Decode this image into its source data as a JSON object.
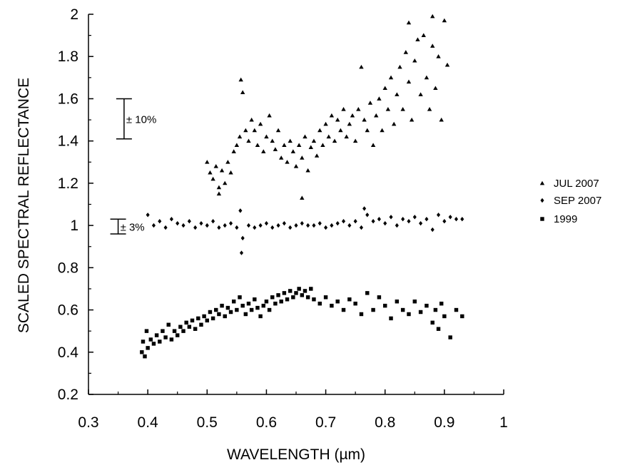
{
  "chart_data": {
    "type": "scatter",
    "title": "",
    "xlabel": "WAVELENGTH (µm)",
    "ylabel": "SCALED SPECTRAL REFLECTANCE",
    "xlim": [
      0.3,
      1.0
    ],
    "ylim": [
      0.2,
      2.0
    ],
    "x_ticks": [
      0.3,
      0.4,
      0.5,
      0.6,
      0.7,
      0.8,
      0.9,
      1.0
    ],
    "x_tick_labels": [
      "0.3",
      "0.4",
      "0.5",
      "0.6",
      "0.7",
      "0.8",
      "0.9",
      "1"
    ],
    "y_ticks": [
      0.2,
      0.4,
      0.6,
      0.8,
      1.0,
      1.2,
      1.4,
      1.6,
      1.8,
      2.0
    ],
    "y_tick_labels": [
      "0.2",
      "0.4",
      "0.6",
      "0.8",
      "1",
      "1.2",
      "1.4",
      "1.6",
      "1.8",
      "2"
    ],
    "grid": false,
    "legend_position": "right",
    "error_bars": [
      {
        "label": "± 10%",
        "x": 0.36,
        "y_low": 1.41,
        "y_high": 1.6
      },
      {
        "label": "± 3%",
        "x": 0.35,
        "y_low": 0.96,
        "y_high": 1.03
      }
    ],
    "series": [
      {
        "name": "JUL 2007",
        "marker": "triangle",
        "color": "#000000",
        "points": [
          [
            0.5,
            1.3
          ],
          [
            0.505,
            1.25
          ],
          [
            0.51,
            1.22
          ],
          [
            0.515,
            1.28
          ],
          [
            0.52,
            1.18
          ],
          [
            0.525,
            1.26
          ],
          [
            0.53,
            1.2
          ],
          [
            0.535,
            1.3
          ],
          [
            0.54,
            1.25
          ],
          [
            0.545,
            1.35
          ],
          [
            0.55,
            1.38
          ],
          [
            0.555,
            1.42
          ],
          [
            0.557,
            1.69
          ],
          [
            0.56,
            1.63
          ],
          [
            0.565,
            1.45
          ],
          [
            0.57,
            1.4
          ],
          [
            0.575,
            1.5
          ],
          [
            0.58,
            1.45
          ],
          [
            0.585,
            1.38
          ],
          [
            0.59,
            1.48
          ],
          [
            0.595,
            1.35
          ],
          [
            0.6,
            1.42
          ],
          [
            0.605,
            1.52
          ],
          [
            0.61,
            1.4
          ],
          [
            0.615,
            1.36
          ],
          [
            0.62,
            1.45
          ],
          [
            0.625,
            1.32
          ],
          [
            0.63,
            1.38
          ],
          [
            0.635,
            1.3
          ],
          [
            0.64,
            1.4
          ],
          [
            0.645,
            1.35
          ],
          [
            0.65,
            1.28
          ],
          [
            0.655,
            1.38
          ],
          [
            0.66,
            1.32
          ],
          [
            0.665,
            1.42
          ],
          [
            0.67,
            1.26
          ],
          [
            0.675,
            1.37
          ],
          [
            0.68,
            1.4
          ],
          [
            0.685,
            1.33
          ],
          [
            0.69,
            1.45
          ],
          [
            0.695,
            1.38
          ],
          [
            0.7,
            1.48
          ],
          [
            0.705,
            1.42
          ],
          [
            0.71,
            1.52
          ],
          [
            0.715,
            1.4
          ],
          [
            0.72,
            1.5
          ],
          [
            0.725,
            1.45
          ],
          [
            0.73,
            1.55
          ],
          [
            0.735,
            1.42
          ],
          [
            0.74,
            1.48
          ],
          [
            0.745,
            1.52
          ],
          [
            0.75,
            1.4
          ],
          [
            0.755,
            1.55
          ],
          [
            0.76,
            1.75
          ],
          [
            0.765,
            1.5
          ],
          [
            0.77,
            1.45
          ],
          [
            0.775,
            1.58
          ],
          [
            0.78,
            1.38
          ],
          [
            0.785,
            1.52
          ],
          [
            0.79,
            1.6
          ],
          [
            0.795,
            1.45
          ],
          [
            0.8,
            1.65
          ],
          [
            0.805,
            1.55
          ],
          [
            0.81,
            1.7
          ],
          [
            0.815,
            1.48
          ],
          [
            0.82,
            1.62
          ],
          [
            0.825,
            1.75
          ],
          [
            0.83,
            1.55
          ],
          [
            0.835,
            1.82
          ],
          [
            0.84,
            1.68
          ],
          [
            0.845,
            1.5
          ],
          [
            0.85,
            1.78
          ],
          [
            0.855,
            1.88
          ],
          [
            0.86,
            1.62
          ],
          [
            0.865,
            1.9
          ],
          [
            0.87,
            1.7
          ],
          [
            0.875,
            1.55
          ],
          [
            0.88,
            1.85
          ],
          [
            0.885,
            1.65
          ],
          [
            0.89,
            1.8
          ],
          [
            0.895,
            1.5
          ],
          [
            0.9,
            1.97
          ],
          [
            0.905,
            1.76
          ],
          [
            0.84,
            1.96
          ],
          [
            0.88,
            1.99
          ],
          [
            0.66,
            1.13
          ],
          [
            0.52,
            1.15
          ]
        ]
      },
      {
        "name": "SEP 2007",
        "marker": "diamond",
        "color": "#000000",
        "points": [
          [
            0.4,
            1.05
          ],
          [
            0.41,
            1.0
          ],
          [
            0.42,
            1.02
          ],
          [
            0.43,
            0.99
          ],
          [
            0.44,
            1.03
          ],
          [
            0.45,
            1.01
          ],
          [
            0.46,
            1.0
          ],
          [
            0.47,
            1.02
          ],
          [
            0.48,
            0.99
          ],
          [
            0.49,
            1.01
          ],
          [
            0.5,
            1.0
          ],
          [
            0.51,
            1.02
          ],
          [
            0.52,
            0.99
          ],
          [
            0.53,
            1.0
          ],
          [
            0.54,
            1.01
          ],
          [
            0.55,
            0.99
          ],
          [
            0.556,
            1.07
          ],
          [
            0.558,
            0.87
          ],
          [
            0.56,
            0.94
          ],
          [
            0.57,
            1.0
          ],
          [
            0.58,
            0.99
          ],
          [
            0.59,
            1.0
          ],
          [
            0.6,
            1.01
          ],
          [
            0.61,
            0.99
          ],
          [
            0.62,
            1.0
          ],
          [
            0.63,
            1.01
          ],
          [
            0.64,
            0.99
          ],
          [
            0.65,
            1.0
          ],
          [
            0.66,
            1.01
          ],
          [
            0.67,
            1.0
          ],
          [
            0.68,
            1.0
          ],
          [
            0.69,
            1.01
          ],
          [
            0.7,
            0.99
          ],
          [
            0.71,
            1.0
          ],
          [
            0.72,
            1.01
          ],
          [
            0.73,
            1.02
          ],
          [
            0.74,
            1.0
          ],
          [
            0.75,
            1.02
          ],
          [
            0.76,
            0.99
          ],
          [
            0.765,
            1.08
          ],
          [
            0.77,
            1.05
          ],
          [
            0.78,
            1.02
          ],
          [
            0.79,
            1.03
          ],
          [
            0.8,
            1.01
          ],
          [
            0.81,
            1.04
          ],
          [
            0.82,
            1.0
          ],
          [
            0.83,
            1.03
          ],
          [
            0.84,
            1.02
          ],
          [
            0.85,
            1.04
          ],
          [
            0.86,
            1.01
          ],
          [
            0.87,
            1.03
          ],
          [
            0.88,
            0.98
          ],
          [
            0.89,
            1.05
          ],
          [
            0.9,
            1.02
          ],
          [
            0.91,
            1.04
          ],
          [
            0.92,
            1.03
          ],
          [
            0.93,
            1.03
          ]
        ]
      },
      {
        "name": "1999",
        "marker": "square",
        "color": "#000000",
        "points": [
          [
            0.39,
            0.4
          ],
          [
            0.392,
            0.45
          ],
          [
            0.395,
            0.38
          ],
          [
            0.398,
            0.5
          ],
          [
            0.4,
            0.42
          ],
          [
            0.405,
            0.46
          ],
          [
            0.41,
            0.44
          ],
          [
            0.415,
            0.48
          ],
          [
            0.42,
            0.45
          ],
          [
            0.425,
            0.5
          ],
          [
            0.43,
            0.47
          ],
          [
            0.435,
            0.53
          ],
          [
            0.44,
            0.46
          ],
          [
            0.445,
            0.5
          ],
          [
            0.45,
            0.48
          ],
          [
            0.455,
            0.52
          ],
          [
            0.46,
            0.5
          ],
          [
            0.465,
            0.54
          ],
          [
            0.47,
            0.52
          ],
          [
            0.475,
            0.55
          ],
          [
            0.48,
            0.51
          ],
          [
            0.485,
            0.56
          ],
          [
            0.49,
            0.53
          ],
          [
            0.495,
            0.57
          ],
          [
            0.5,
            0.55
          ],
          [
            0.505,
            0.59
          ],
          [
            0.51,
            0.56
          ],
          [
            0.515,
            0.6
          ],
          [
            0.52,
            0.58
          ],
          [
            0.525,
            0.62
          ],
          [
            0.53,
            0.57
          ],
          [
            0.535,
            0.61
          ],
          [
            0.54,
            0.59
          ],
          [
            0.545,
            0.64
          ],
          [
            0.55,
            0.6
          ],
          [
            0.555,
            0.66
          ],
          [
            0.56,
            0.62
          ],
          [
            0.565,
            0.58
          ],
          [
            0.57,
            0.63
          ],
          [
            0.575,
            0.6
          ],
          [
            0.58,
            0.65
          ],
          [
            0.585,
            0.61
          ],
          [
            0.59,
            0.57
          ],
          [
            0.595,
            0.62
          ],
          [
            0.6,
            0.64
          ],
          [
            0.605,
            0.6
          ],
          [
            0.61,
            0.66
          ],
          [
            0.615,
            0.63
          ],
          [
            0.62,
            0.67
          ],
          [
            0.625,
            0.64
          ],
          [
            0.63,
            0.68
          ],
          [
            0.635,
            0.65
          ],
          [
            0.64,
            0.69
          ],
          [
            0.645,
            0.66
          ],
          [
            0.65,
            0.68
          ],
          [
            0.655,
            0.7
          ],
          [
            0.66,
            0.67
          ],
          [
            0.665,
            0.69
          ],
          [
            0.67,
            0.66
          ],
          [
            0.675,
            0.7
          ],
          [
            0.68,
            0.65
          ],
          [
            0.69,
            0.63
          ],
          [
            0.7,
            0.66
          ],
          [
            0.71,
            0.62
          ],
          [
            0.72,
            0.64
          ],
          [
            0.73,
            0.6
          ],
          [
            0.74,
            0.65
          ],
          [
            0.75,
            0.63
          ],
          [
            0.76,
            0.58
          ],
          [
            0.77,
            0.68
          ],
          [
            0.78,
            0.6
          ],
          [
            0.79,
            0.66
          ],
          [
            0.8,
            0.62
          ],
          [
            0.81,
            0.56
          ],
          [
            0.82,
            0.64
          ],
          [
            0.83,
            0.6
          ],
          [
            0.84,
            0.58
          ],
          [
            0.85,
            0.64
          ],
          [
            0.86,
            0.59
          ],
          [
            0.87,
            0.62
          ],
          [
            0.88,
            0.54
          ],
          [
            0.885,
            0.6
          ],
          [
            0.89,
            0.51
          ],
          [
            0.895,
            0.63
          ],
          [
            0.9,
            0.57
          ],
          [
            0.91,
            0.47
          ],
          [
            0.92,
            0.6
          ],
          [
            0.93,
            0.57
          ]
        ]
      }
    ]
  }
}
